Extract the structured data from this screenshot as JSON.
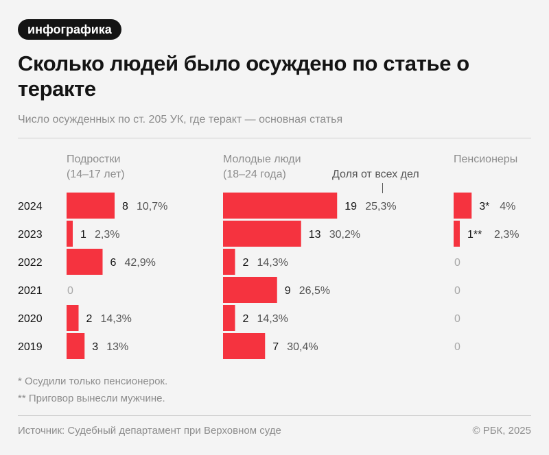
{
  "badge": "инфографика",
  "title": "Сколько людей было осуждено по статье о теракте",
  "subtitle": "Число осужденных по ст. 205 УК, где теракт — основная статья",
  "share_label": "Доля от всех дел",
  "chart_data": {
    "type": "bar",
    "orientation": "horizontal",
    "categories": [
      "2024",
      "2023",
      "2022",
      "2021",
      "2020",
      "2019"
    ],
    "series": [
      {
        "name": "Подростки",
        "name_sub": "(14–17 лет)",
        "values": [
          8,
          1,
          6,
          0,
          2,
          3
        ],
        "value_labels": [
          "8",
          "1",
          "6",
          "0",
          "2",
          "3"
        ],
        "shares": [
          "10,7%",
          "2,3%",
          "42,9%",
          "",
          "14,3%",
          "13%"
        ]
      },
      {
        "name": "Молодые люди",
        "name_sub": "(18–24 года)",
        "values": [
          19,
          13,
          2,
          9,
          2,
          7
        ],
        "value_labels": [
          "19",
          "13",
          "2",
          "9",
          "2",
          "7"
        ],
        "shares": [
          "25,3%",
          "30,2%",
          "14,3%",
          "26,5%",
          "14,3%",
          "30,4%"
        ]
      },
      {
        "name": "Пенсионеры",
        "name_sub": "",
        "values": [
          3,
          1,
          0,
          0,
          0,
          0
        ],
        "value_labels": [
          "3*",
          "1**",
          "0",
          "0",
          "0",
          "0"
        ],
        "shares": [
          "4%",
          "2,3%",
          "",
          "",
          "",
          ""
        ]
      }
    ],
    "bar_color": "#f5333f"
  },
  "footnotes": [
    "* Осудили только пенсионерок.",
    "** Приговор вынесли мужчине."
  ],
  "source": "Источник: Судебный департамент при Верховном суде",
  "copyright": "© РБК, 2025"
}
